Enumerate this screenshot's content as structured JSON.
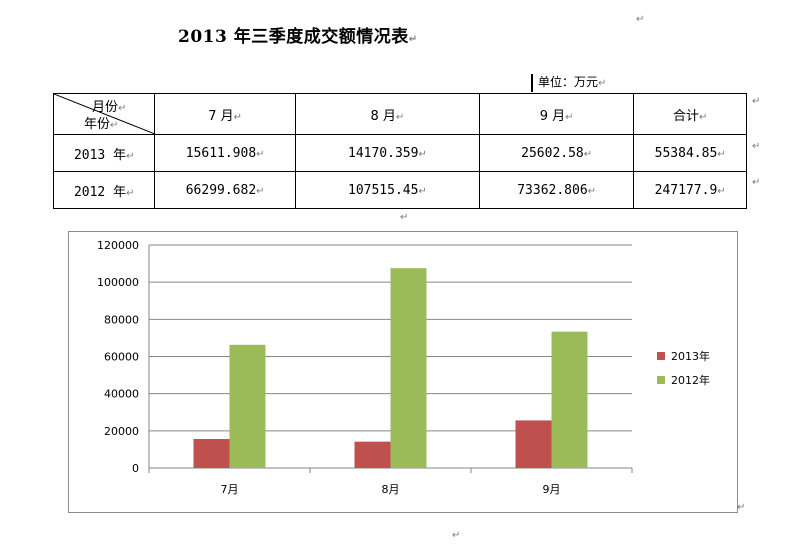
{
  "title": "2013 年三季度成交额情况表",
  "para_mark": "↵",
  "unit_label": "单位：万元",
  "table": {
    "corner_top": "月份",
    "corner_bottom": "年份",
    "headers": [
      "7 月",
      "8 月",
      "9 月",
      "合计"
    ],
    "rows": [
      {
        "year": "2013 年",
        "cells": [
          "15611.908",
          "14170.359",
          "25602.58",
          "55384.85"
        ]
      },
      {
        "year": "2012 年",
        "cells": [
          "66299.682",
          "107515.45",
          "73362.806",
          "247177.9"
        ]
      }
    ]
  },
  "chart_data": {
    "type": "bar",
    "categories": [
      "7月",
      "8月",
      "9月"
    ],
    "series": [
      {
        "name": "2013年",
        "color": "#c0504d",
        "values": [
          15611.908,
          14170.359,
          25602.58
        ]
      },
      {
        "name": "2012年",
        "color": "#9bbb59",
        "values": [
          66299.682,
          107515.45,
          73362.806
        ]
      }
    ],
    "ylim": [
      0,
      120000
    ],
    "yticks": [
      "0",
      "20000",
      "40000",
      "60000",
      "80000",
      "100000",
      "120000"
    ],
    "grid": true,
    "legend": "right"
  }
}
